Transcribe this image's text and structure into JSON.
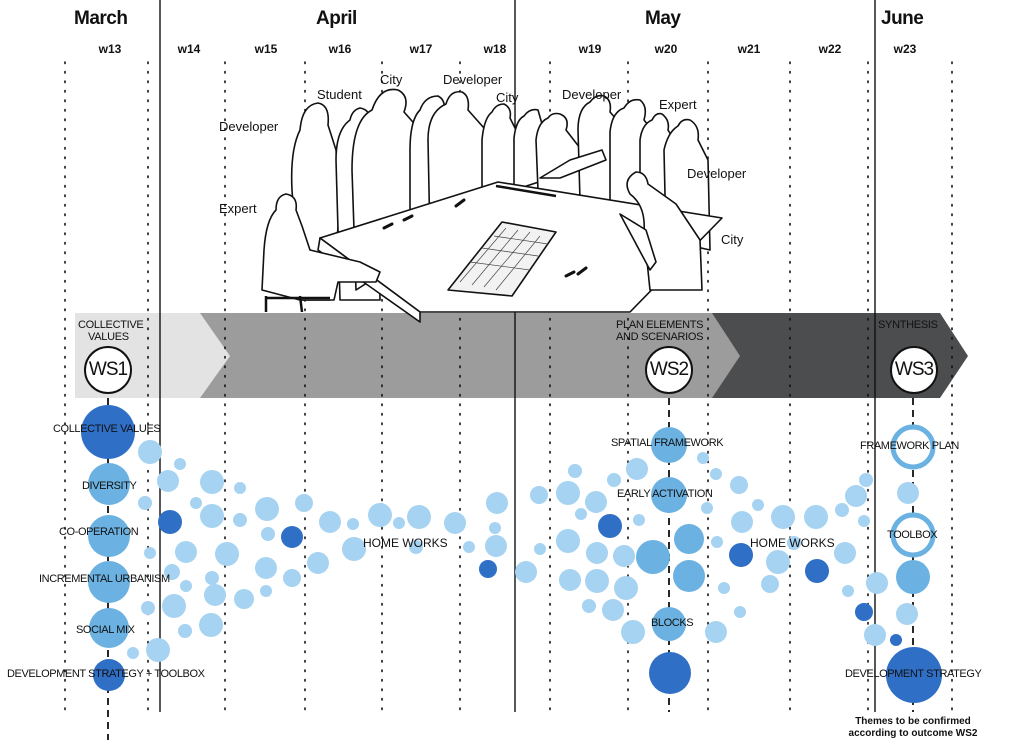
{
  "months": {
    "march": "March",
    "april": "April",
    "may": "May",
    "june": "June"
  },
  "weeks": [
    "w13",
    "w14",
    "w15",
    "w16",
    "w17",
    "w18",
    "w19",
    "w20",
    "w21",
    "w22",
    "w23"
  ],
  "roles": {
    "developer_left": "Developer",
    "student": "Student",
    "city_top": "City",
    "developer_top": "Developer",
    "city_mid": "City",
    "developer_mid": "Developer",
    "expert_top": "Expert",
    "developer_right": "Developer",
    "expert_left": "Expert",
    "city_right": "City"
  },
  "phases": {
    "collective_values": [
      "COLLECTIVE",
      "VALUES"
    ],
    "plan_elements": [
      "PLAN ELEMENTS",
      "AND SCENARIOS"
    ],
    "synthesis": [
      "SYNTHESIS"
    ]
  },
  "workshops": {
    "ws1": "WS1",
    "ws2": "WS2",
    "ws3": "WS3"
  },
  "themes_ws1": [
    "COLLECTIVE VALUES",
    "DIVERSITY",
    "CO-OPERATION",
    "INCREMENTAL URBANISM",
    "SOCIAL MIX",
    "DEVELOPMENT STRATEGY + TOOLBOX"
  ],
  "themes_ws2": [
    "SPATIAL FRAMEWORK",
    "EARLY ACTIVATION",
    "BLOCKS"
  ],
  "themes_ws3": [
    "FRAMEWORK PLAN",
    "TOOLBOX",
    "DEVELOPMENT STRATEGY"
  ],
  "home_works": [
    "HOME WORKS",
    "HOME WORKS"
  ],
  "note": [
    "Themes to be confirmed",
    "according to outcome WS2"
  ],
  "colors": {
    "dark_blue": "#2f6fc6",
    "mid_blue": "#6bb2e2",
    "light_blue": "#a6d3f2",
    "arrow_light": "#e3e3e3",
    "arrow_mid": "#9c9c9c",
    "arrow_dark": "#4c4d4f"
  },
  "icons": [
    "meeting-illustration"
  ]
}
